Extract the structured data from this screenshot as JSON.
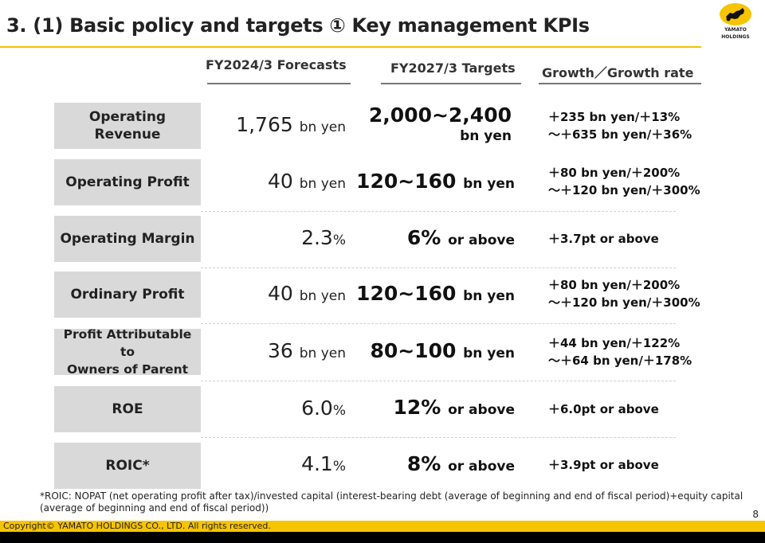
{
  "header": {
    "title": "3. (1) Basic policy and targets ① Key management KPIs",
    "logo_text_1": "YAMATO",
    "logo_text_2": "HOLDINGS"
  },
  "columns": {
    "forecast": "FY2024/3 Forecasts",
    "target": "FY2027/3 Targets",
    "growth": "Growth／Growth rate"
  },
  "rows": [
    {
      "label_1": "Operating",
      "label_2": "Revenue",
      "forecast_value": "1,765",
      "forecast_unit": "bn yen",
      "target_value": "2,000~2,400",
      "target_unit": "bn yen",
      "growth_1": "＋235 bn yen/＋13%",
      "growth_2": "～＋635 bn yen/＋36%"
    },
    {
      "label": "Operating Profit",
      "forecast_value": "40",
      "forecast_unit": "bn yen",
      "target_value": "120~160",
      "target_unit": "bn yen",
      "growth_1": "＋80 bn yen/＋200%",
      "growth_2": "～＋120 bn yen/＋300%"
    },
    {
      "label": "Operating Margin",
      "forecast_value": "2.3",
      "forecast_unit": "%",
      "target_value": "6%",
      "target_unit": "or above",
      "growth_1": "＋3.7pt or above"
    },
    {
      "label": "Ordinary Profit",
      "forecast_value": "40",
      "forecast_unit": "bn yen",
      "target_value": "120~160",
      "target_unit": "bn yen",
      "growth_1": "＋80 bn yen/＋200%",
      "growth_2": "～＋120 bn yen/＋300%"
    },
    {
      "label_1": "Profit Attributable to",
      "label_2": "Owners of Parent",
      "forecast_value": "36",
      "forecast_unit": "bn yen",
      "target_value": "80~100",
      "target_unit": "bn yen",
      "growth_1": "＋44 bn yen/＋122%",
      "growth_2": "～＋64 bn yen/＋178%"
    },
    {
      "label": "ROE",
      "forecast_value": "6.0",
      "forecast_unit": "%",
      "target_value": "12%",
      "target_unit": "or above",
      "growth_1": "＋6.0pt or above"
    },
    {
      "label": "ROIC*",
      "forecast_value": "4.1",
      "forecast_unit": "%",
      "target_value": "8%",
      "target_unit": "or above",
      "growth_1": "＋3.9pt or above"
    }
  ],
  "footnote": {
    "line_1": "*ROIC: NOPAT (net operating profit after tax)/invested capital (interest-bearing debt (average of beginning and end of fiscal period)+equity capital",
    "line_2": "(average of beginning and end of fiscal period))"
  },
  "page_number": "8",
  "footer": {
    "copyright": "Copyright© YAMATO HOLDINGS CO., LTD. All rights reserved."
  },
  "colors": {
    "accent": "#f6c400",
    "label_bg": "#d9d9d9"
  }
}
